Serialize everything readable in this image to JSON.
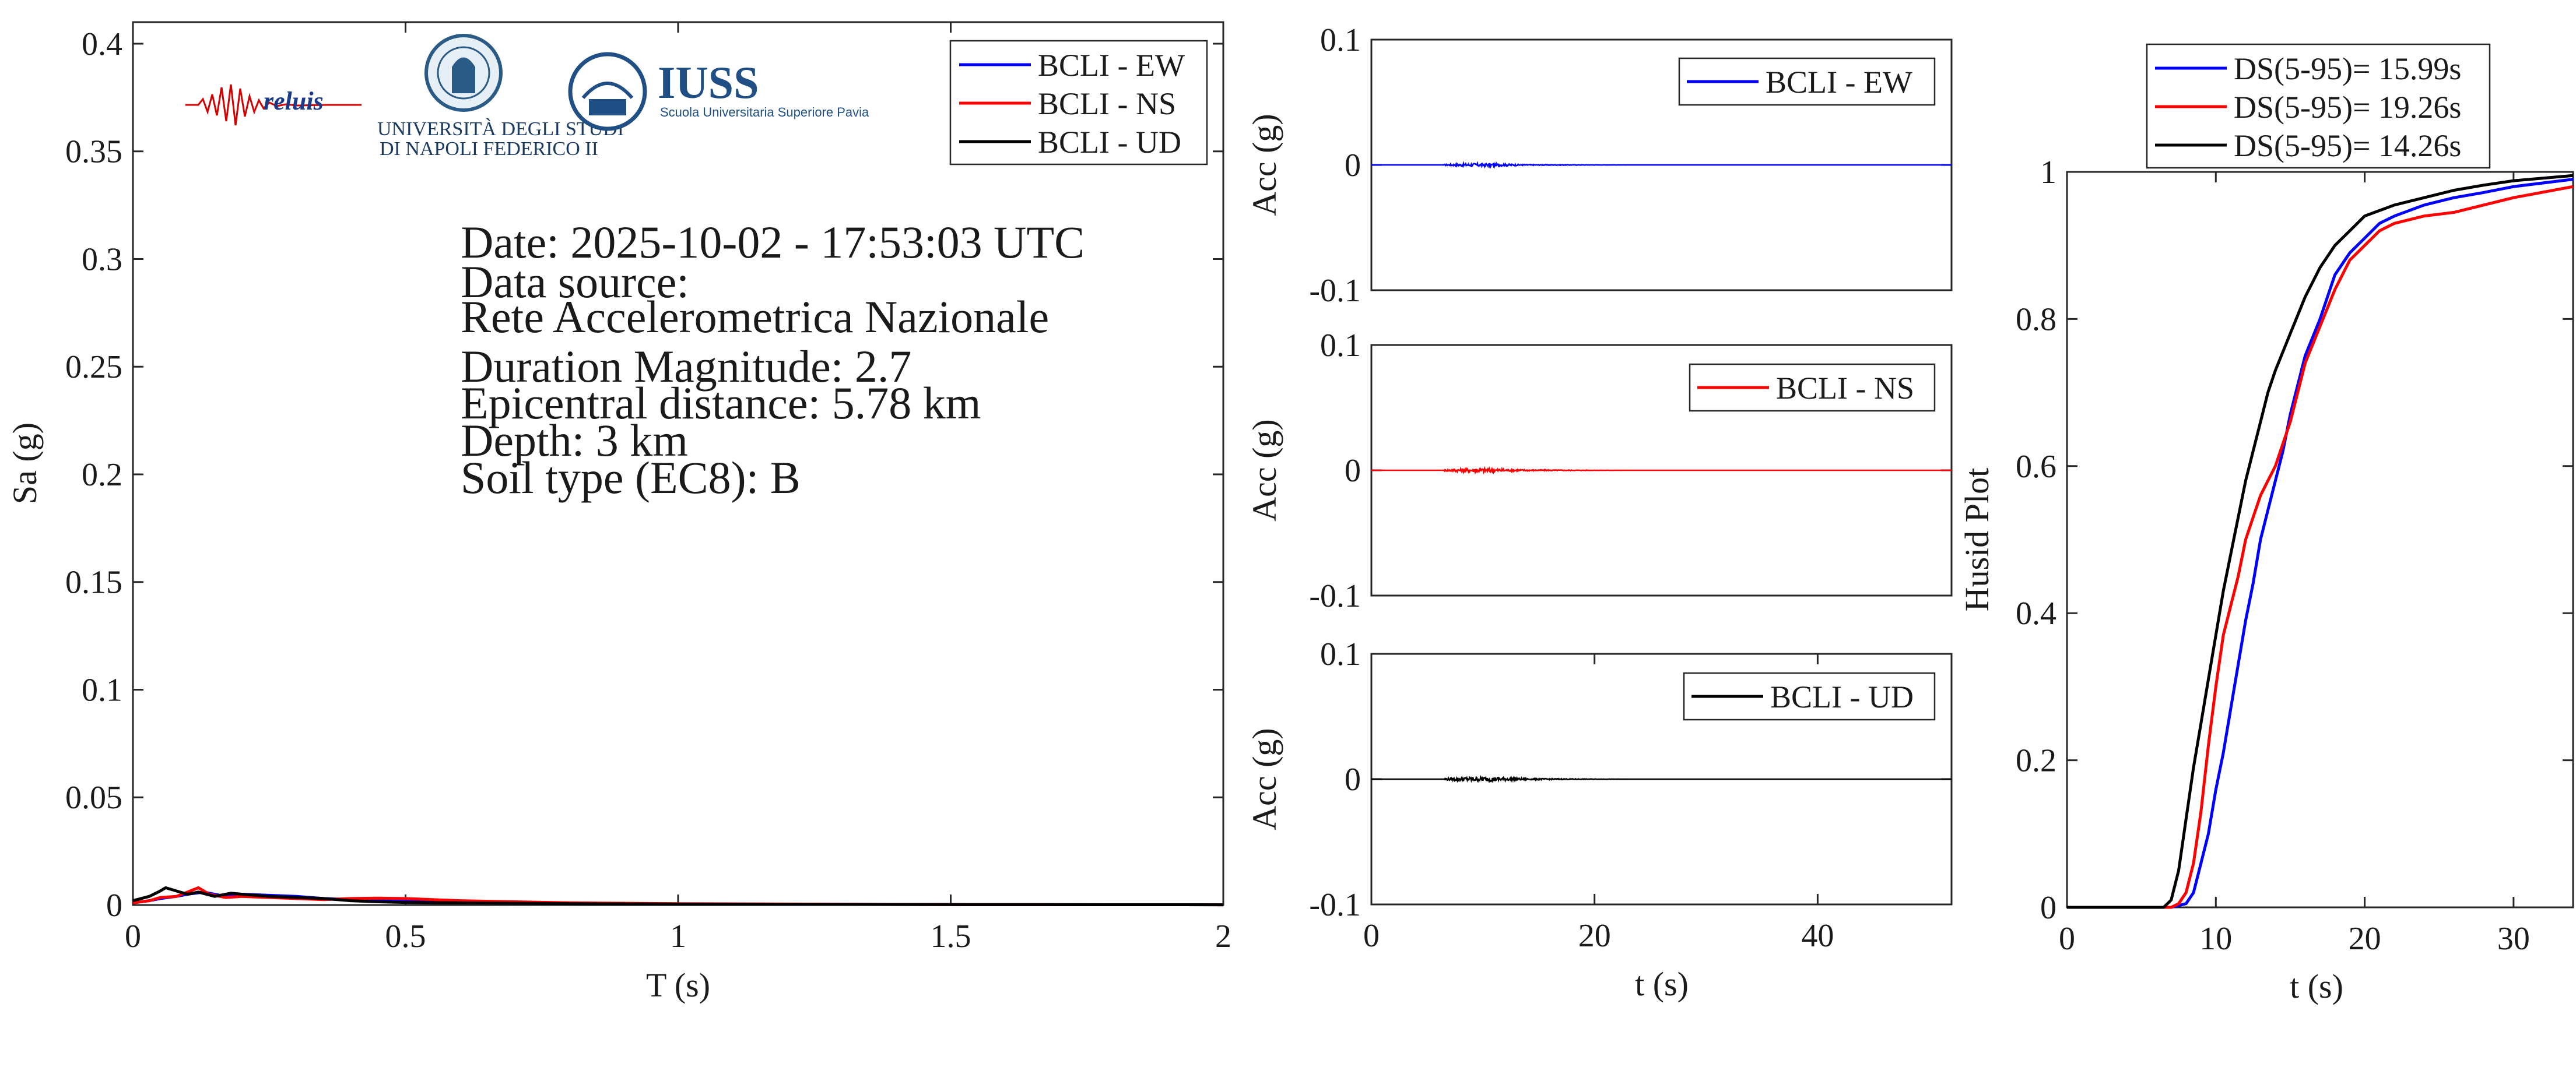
{
  "logos": {
    "reluis": "reluis",
    "unina_line1": "UNIVERSITÀ DEGLI STUDI",
    "unina_line2": "DI NAPOLI FEDERICO II",
    "iuss_name": "IUSS",
    "iuss_sub": "Scuola Universitaria Superiore Pavia"
  },
  "info": {
    "date": "Date: 2025-10-02 - 17:53:03 UTC",
    "source_label": "Data source:",
    "source": "Rete Accelerometrica Nazionale",
    "magnitude": "Duration Magnitude: 2.7",
    "distance": "Epicentral distance: 5.78 km",
    "depth": "Depth: 3 km",
    "soil": "Soil type (EC8): B"
  },
  "colors": {
    "ew": "#0000ff",
    "ns": "#ff0000",
    "ud": "#000000",
    "axis": "#262626"
  },
  "chart_data": [
    {
      "id": "spectrum",
      "type": "line",
      "xlabel": "T (s)",
      "ylabel": "Sa (g)",
      "xlim": [
        0,
        2
      ],
      "ylim": [
        0,
        0.41
      ],
      "xticks": [
        "0",
        "0.5",
        "1",
        "1.5",
        "2"
      ],
      "xtick_values": [
        0,
        0.5,
        1,
        1.5,
        2
      ],
      "yticks": [
        "0",
        "0.05",
        "0.1",
        "0.15",
        "0.2",
        "0.25",
        "0.3",
        "0.35",
        "0.4"
      ],
      "ytick_values": [
        0,
        0.05,
        0.1,
        0.15,
        0.2,
        0.25,
        0.3,
        0.35,
        0.4
      ],
      "legend_position": "top-right",
      "series": [
        {
          "name": "BCLI - EW",
          "color": "#0000ff",
          "x": [
            0,
            0.03,
            0.05,
            0.08,
            0.1,
            0.13,
            0.16,
            0.2,
            0.25,
            0.3,
            0.35,
            0.4,
            0.45,
            0.5,
            0.6,
            0.7,
            0.8,
            1.0,
            1.5,
            2.0
          ],
          "y": [
            0.001,
            0.002,
            0.003,
            0.004,
            0.005,
            0.006,
            0.0045,
            0.005,
            0.0045,
            0.004,
            0.003,
            0.0025,
            0.002,
            0.002,
            0.0015,
            0.001,
            0.0008,
            0.0005,
            0.0002,
            0.0001
          ]
        },
        {
          "name": "BCLI - NS",
          "color": "#ff0000",
          "x": [
            0,
            0.03,
            0.05,
            0.08,
            0.1,
            0.12,
            0.14,
            0.17,
            0.2,
            0.25,
            0.3,
            0.35,
            0.4,
            0.45,
            0.5,
            0.55,
            0.6,
            0.7,
            0.8,
            1.0,
            1.5,
            2.0
          ],
          "y": [
            0.001,
            0.002,
            0.0035,
            0.004,
            0.006,
            0.008,
            0.005,
            0.0035,
            0.004,
            0.0035,
            0.003,
            0.0025,
            0.003,
            0.0032,
            0.003,
            0.0025,
            0.002,
            0.0015,
            0.001,
            0.0006,
            0.0002,
            0.0001
          ]
        },
        {
          "name": "BCLI - UD",
          "color": "#000000",
          "x": [
            0,
            0.03,
            0.05,
            0.06,
            0.08,
            0.1,
            0.12,
            0.15,
            0.18,
            0.2,
            0.25,
            0.3,
            0.35,
            0.4,
            0.45,
            0.5,
            0.6,
            0.7,
            0.8,
            1.0,
            1.5,
            2.0
          ],
          "y": [
            0.002,
            0.004,
            0.0065,
            0.008,
            0.0065,
            0.005,
            0.006,
            0.004,
            0.0055,
            0.005,
            0.004,
            0.0035,
            0.003,
            0.002,
            0.0015,
            0.0012,
            0.001,
            0.0008,
            0.0006,
            0.0004,
            0.0002,
            0.0001
          ]
        }
      ]
    },
    {
      "id": "acc_ew",
      "type": "line",
      "ylabel": "Acc (g)",
      "xlim": [
        0,
        52
      ],
      "ylim": [
        -0.1,
        0.1
      ],
      "yticks": [
        "0.1",
        "0",
        "-0.1"
      ],
      "ytick_values": [
        0.1,
        0,
        -0.1
      ],
      "legend_position": "top-right",
      "series": [
        {
          "name": "BCLI - EW",
          "color": "#0000ff",
          "amplitude": 0.0012
        }
      ]
    },
    {
      "id": "acc_ns",
      "type": "line",
      "ylabel": "Acc (g)",
      "xlim": [
        0,
        52
      ],
      "ylim": [
        -0.1,
        0.1
      ],
      "yticks": [
        "0.1",
        "0",
        "-0.1"
      ],
      "ytick_values": [
        0.1,
        0,
        -0.1
      ],
      "legend_position": "top-right",
      "series": [
        {
          "name": "BCLI - NS",
          "color": "#ff0000",
          "amplitude": 0.0015
        }
      ]
    },
    {
      "id": "acc_ud",
      "type": "line",
      "xlabel": "t (s)",
      "ylabel": "Acc (g)",
      "xlim": [
        0,
        52
      ],
      "ylim": [
        -0.1,
        0.1
      ],
      "xticks": [
        "0",
        "20",
        "40"
      ],
      "xtick_values": [
        0,
        20,
        40
      ],
      "yticks": [
        "0.1",
        "0",
        "-0.1"
      ],
      "ytick_values": [
        0.1,
        0,
        -0.1
      ],
      "legend_position": "top-right",
      "series": [
        {
          "name": "BCLI - UD",
          "color": "#000000",
          "amplitude": 0.0018
        }
      ]
    },
    {
      "id": "husid",
      "type": "line",
      "xlabel": "t (s)",
      "ylabel": "Husid Plot",
      "xlim": [
        0,
        34
      ],
      "ylim": [
        0,
        1
      ],
      "xticks": [
        "0",
        "10",
        "20",
        "30"
      ],
      "xtick_values": [
        0,
        10,
        20,
        30
      ],
      "yticks": [
        "0",
        "0.2",
        "0.4",
        "0.6",
        "0.8",
        "1"
      ],
      "ytick_values": [
        0,
        0.2,
        0.4,
        0.6,
        0.8,
        1
      ],
      "legend_position": "top, outside",
      "series": [
        {
          "name": "DS(5-95)= 15.99s",
          "color": "#0000ff",
          "x": [
            0,
            7,
            8,
            8.5,
            9,
            9.5,
            10,
            10.5,
            11,
            11.5,
            12,
            12.5,
            13,
            13.5,
            14,
            14.5,
            15,
            16,
            17,
            18,
            19,
            20,
            21,
            22,
            24,
            26,
            28,
            30,
            34
          ],
          "y": [
            0,
            0,
            0.005,
            0.02,
            0.06,
            0.1,
            0.16,
            0.21,
            0.27,
            0.33,
            0.39,
            0.44,
            0.5,
            0.54,
            0.58,
            0.62,
            0.67,
            0.75,
            0.8,
            0.86,
            0.89,
            0.91,
            0.93,
            0.94,
            0.955,
            0.965,
            0.972,
            0.98,
            0.99
          ]
        },
        {
          "name": "DS(5-95)= 19.26s",
          "color": "#ff0000",
          "x": [
            0,
            7,
            7.5,
            8,
            8.5,
            9,
            9.5,
            10,
            10.5,
            11,
            11.5,
            12,
            12.5,
            13,
            13.5,
            14,
            15,
            16,
            17,
            18,
            19,
            20,
            21,
            22,
            24,
            26,
            28,
            30,
            34
          ],
          "y": [
            0,
            0,
            0.005,
            0.02,
            0.06,
            0.13,
            0.22,
            0.3,
            0.37,
            0.41,
            0.45,
            0.5,
            0.53,
            0.56,
            0.58,
            0.6,
            0.66,
            0.74,
            0.79,
            0.84,
            0.88,
            0.9,
            0.92,
            0.93,
            0.94,
            0.945,
            0.955,
            0.965,
            0.98
          ]
        },
        {
          "name": "DS(5-95)= 14.26s",
          "color": "#000000",
          "x": [
            0,
            6.5,
            7,
            7.5,
            8,
            8.5,
            9,
            9.5,
            10,
            10.5,
            11,
            11.5,
            12,
            12.5,
            13,
            13.5,
            14,
            15,
            16,
            17,
            18,
            19,
            20,
            22,
            24,
            26,
            28,
            30,
            34
          ],
          "y": [
            0,
            0,
            0.01,
            0.05,
            0.12,
            0.19,
            0.25,
            0.31,
            0.37,
            0.43,
            0.48,
            0.53,
            0.58,
            0.62,
            0.66,
            0.7,
            0.73,
            0.78,
            0.83,
            0.87,
            0.9,
            0.92,
            0.94,
            0.955,
            0.965,
            0.975,
            0.982,
            0.988,
            0.995
          ]
        }
      ]
    }
  ]
}
